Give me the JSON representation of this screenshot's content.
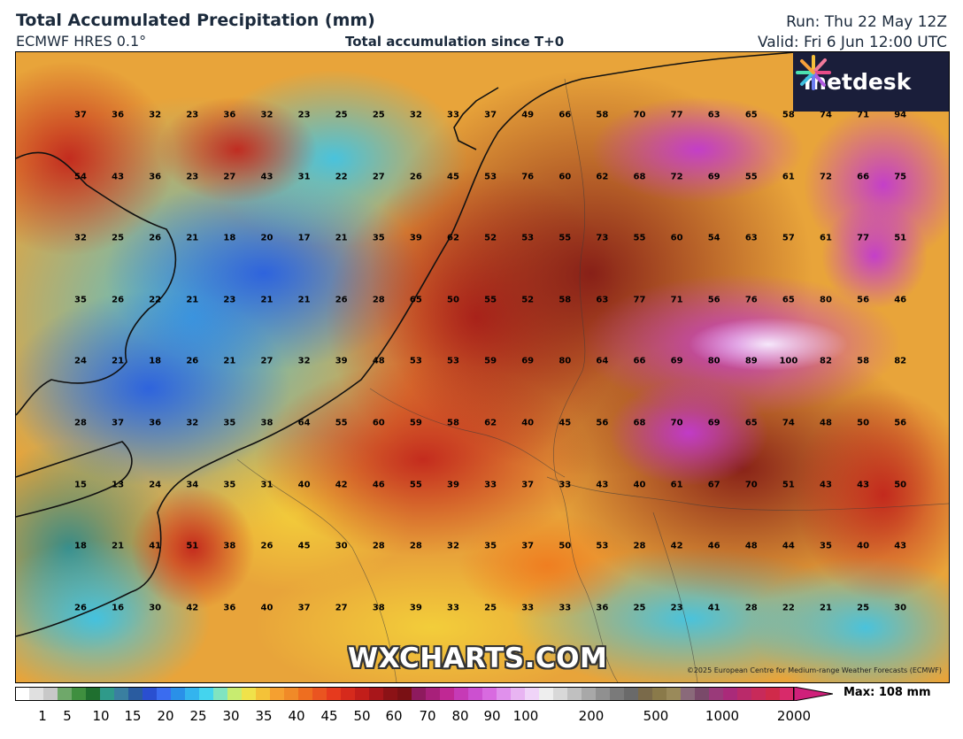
{
  "header": {
    "title": "Total Accumulated Precipitation (mm)",
    "model": "ECMWF HRES 0.1°",
    "subtitle": "Total accumulation since T+0",
    "run": "Run: Thu 22 May 12Z",
    "valid": "Valid: Fri 6 Jun 12:00 UTC"
  },
  "logo": {
    "text": "metdesk",
    "icon": "metdesk-burst-icon"
  },
  "watermark": "WXCHARTS.COM",
  "copyright": "©2025 European Centre for Medium-range Weather Forecasts (ECMWF)",
  "legend": {
    "max_label": "Max: 108 mm",
    "tick_labels": [
      "1",
      "5",
      "10",
      "15",
      "20",
      "25",
      "30",
      "35",
      "40",
      "45",
      "50",
      "60",
      "70",
      "80",
      "90",
      "100",
      "200",
      "500",
      "1000",
      "2000"
    ]
  },
  "map": {
    "grid_values": [
      [
        37,
        36,
        32,
        23,
        36,
        32,
        23,
        25,
        25,
        32,
        33,
        37,
        49,
        66,
        58,
        70,
        77,
        63,
        65,
        58,
        74,
        71,
        94
      ],
      [
        54,
        43,
        36,
        23,
        27,
        43,
        31,
        22,
        27,
        26,
        45,
        53,
        76,
        60,
        62,
        68,
        72,
        69,
        55,
        61,
        72,
        66,
        75
      ],
      [
        32,
        25,
        26,
        21,
        18,
        20,
        17,
        21,
        35,
        39,
        62,
        52,
        53,
        55,
        73,
        55,
        60,
        54,
        63,
        57,
        61,
        77,
        51
      ],
      [
        35,
        26,
        22,
        21,
        23,
        21,
        21,
        26,
        28,
        65,
        50,
        55,
        52,
        58,
        63,
        77,
        71,
        56,
        76,
        65,
        80,
        56,
        46
      ],
      [
        24,
        21,
        18,
        26,
        21,
        27,
        32,
        39,
        48,
        53,
        53,
        59,
        69,
        80,
        64,
        66,
        69,
        80,
        89,
        100,
        82,
        58,
        82
      ],
      [
        28,
        37,
        36,
        32,
        35,
        38,
        64,
        55,
        60,
        59,
        58,
        62,
        40,
        45,
        56,
        68,
        70,
        69,
        65,
        74,
        48,
        50,
        56
      ],
      [
        15,
        13,
        24,
        34,
        35,
        31,
        40,
        42,
        46,
        55,
        39,
        33,
        37,
        33,
        43,
        40,
        61,
        67,
        70,
        51,
        43,
        43,
        50
      ],
      [
        18,
        21,
        41,
        51,
        38,
        26,
        45,
        30,
        28,
        28,
        32,
        35,
        37,
        50,
        53,
        28,
        42,
        46,
        48,
        44,
        35,
        40,
        43
      ],
      [
        26,
        16,
        30,
        42,
        36,
        40,
        37,
        27,
        38,
        39,
        33,
        25,
        33,
        33,
        36,
        25,
        23,
        41,
        28,
        22,
        21,
        25,
        30
      ]
    ]
  }
}
